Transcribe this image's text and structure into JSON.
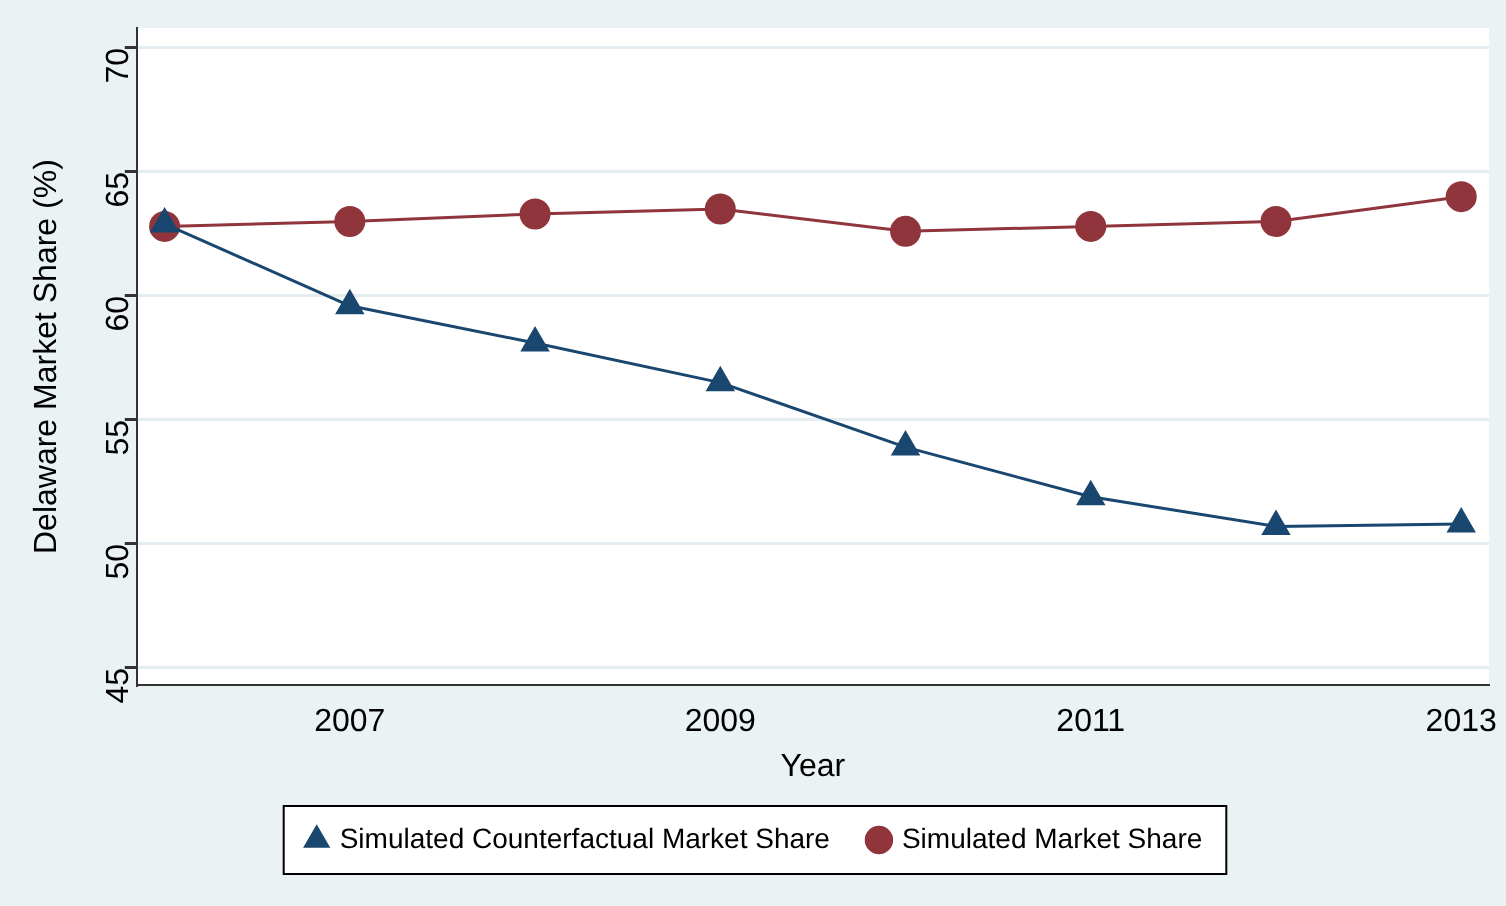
{
  "chart_data": {
    "type": "line",
    "xlabel": "Year",
    "ylabel": "Delaware Market Share (%)",
    "x": [
      2006,
      2007,
      2008,
      2009,
      2010,
      2011,
      2012,
      2013
    ],
    "series": [
      {
        "name": "Simulated Counterfactual Market Share",
        "color": "#1a476f",
        "marker": "triangle",
        "values": [
          62.9,
          59.6,
          58.1,
          56.5,
          53.9,
          51.9,
          50.7,
          50.8
        ]
      },
      {
        "name": "Simulated Market Share",
        "color": "#90353b",
        "marker": "circle",
        "values": [
          62.8,
          63.0,
          63.3,
          63.5,
          62.6,
          62.8,
          63.0,
          64.0
        ]
      }
    ],
    "xlim": [
      2005.85,
      2013.15
    ],
    "xticks": [
      2007,
      2009,
      2011,
      2013
    ],
    "ylim": [
      44.3,
      70.8
    ],
    "yticks": [
      45,
      50,
      55,
      60,
      65,
      70
    ],
    "grid": "y",
    "legend": "bottom",
    "line_style": "solid"
  }
}
